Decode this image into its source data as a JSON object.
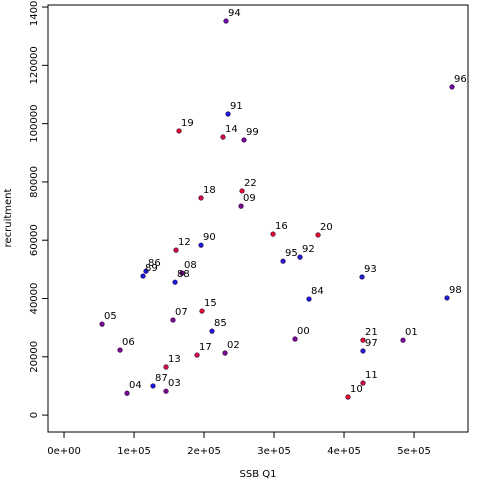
{
  "chart_data": {
    "type": "scatter",
    "xlabel": "SSB Q1",
    "ylabel": "recruitment",
    "labels": [
      "94",
      "96",
      "91",
      "19",
      "14",
      "99",
      "18",
      "22",
      "09",
      "16",
      "20",
      "12",
      "90",
      "95",
      "92",
      "86",
      "89",
      "08",
      "88",
      "93",
      "84",
      "98",
      "05",
      "07",
      "15",
      "85",
      "00",
      "21",
      "01",
      "97",
      "06",
      "17",
      "02",
      "13",
      "87",
      "03",
      "04",
      "11",
      "10"
    ],
    "x": [
      231400,
      554300,
      234300,
      164300,
      227100,
      257100,
      195700,
      254300,
      252900,
      298600,
      362900,
      160000,
      195700,
      312900,
      337100,
      117100,
      112900,
      168600,
      158600,
      425700,
      350000,
      547100,
      54300,
      155700,
      197100,
      211400,
      330000,
      427100,
      484300,
      427100,
      80000,
      190000,
      230000,
      145700,
      127100,
      145700,
      90000,
      427100,
      405700
    ],
    "values": [
      135200,
      112600,
      103300,
      97500,
      95400,
      94400,
      74500,
      76900,
      71700,
      62100,
      61800,
      56600,
      58300,
      52800,
      54200,
      49400,
      47700,
      48700,
      45600,
      47400,
      39800,
      40200,
      31200,
      32600,
      35700,
      28800,
      26100,
      25700,
      25700,
      22000,
      22300,
      20600,
      21300,
      16500,
      10000,
      8200,
      7500,
      11000,
      6200
    ],
    "point_colors": [
      "#6a0da0",
      "#6a0da0",
      "#1a1ae0",
      "#e0102a",
      "#d01040",
      "#7a0a90",
      "#d01040",
      "#e0102a",
      "#7a0a90",
      "#e0102a",
      "#e0102a",
      "#d01040",
      "#1a1ae0",
      "#2020d0",
      "#2020d0",
      "#1a1ae0",
      "#1a1ae0",
      "#7a0a90",
      "#1a1ae0",
      "#2020d0",
      "#1a1ae0",
      "#2020d0",
      "#7a0a90",
      "#7a0a90",
      "#e0102a",
      "#1a1ae0",
      "#7a0a90",
      "#e0102a",
      "#7a0a90",
      "#2020d0",
      "#7a0a90",
      "#d01040",
      "#7a0a90",
      "#d01040",
      "#1a1ae0",
      "#7a0a90",
      "#7a0a90",
      "#d01040",
      "#e0102a"
    ],
    "xlim": [
      -22900,
      577100
    ],
    "ylim": [
      -5800,
      140700
    ],
    "xticks": [
      {
        "value": 0,
        "label": "0e+00"
      },
      {
        "value": 100000,
        "label": "1e+05"
      },
      {
        "value": 200000,
        "label": "2e+05"
      },
      {
        "value": 300000,
        "label": "3e+05"
      },
      {
        "value": 400000,
        "label": "4e+05"
      },
      {
        "value": 500000,
        "label": "5e+05"
      }
    ],
    "yticks": [
      0,
      20000,
      40000,
      60000,
      80000,
      100000,
      120000,
      140000
    ]
  }
}
